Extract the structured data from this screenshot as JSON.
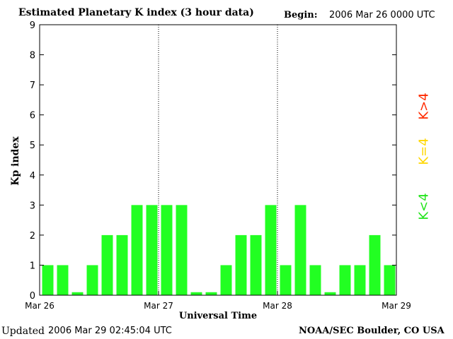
{
  "header": {
    "title": "Estimated Planetary K index (3 hour data)",
    "begin_label": "Begin:",
    "begin_value": "2006 Mar 26 0000 UTC"
  },
  "footer": {
    "updated_label": "Updated",
    "updated_value": "2006 Mar 29 02:45:04 UTC",
    "source": "NOAA/SEC Boulder, CO USA"
  },
  "legend": [
    {
      "label": "K>4",
      "color": "#ff2a00"
    },
    {
      "label": "K=4",
      "color": "#ffd700"
    },
    {
      "label": "K<4",
      "color": "#22e41b"
    }
  ],
  "chart_data": {
    "type": "bar",
    "title": "Estimated Planetary K index (3 hour data)",
    "xlabel": "Universal Time",
    "ylabel": "Kp index",
    "ylim": [
      0,
      9
    ],
    "yticks": [
      0,
      1,
      2,
      3,
      4,
      5,
      6,
      7,
      8,
      9
    ],
    "xtick_labels": [
      "Mar 26",
      "Mar 27",
      "Mar 28",
      "Mar 29"
    ],
    "day_separators": [
      "Mar 27",
      "Mar 28"
    ],
    "bar_interval_hours": 3,
    "bar_color": "#22ff22",
    "values": [
      1,
      1,
      0.1,
      1,
      2,
      2,
      3,
      3,
      3,
      3,
      0.1,
      0.1,
      1,
      2,
      2,
      3,
      1,
      3,
      1,
      0.1,
      1,
      1,
      2,
      1
    ]
  }
}
